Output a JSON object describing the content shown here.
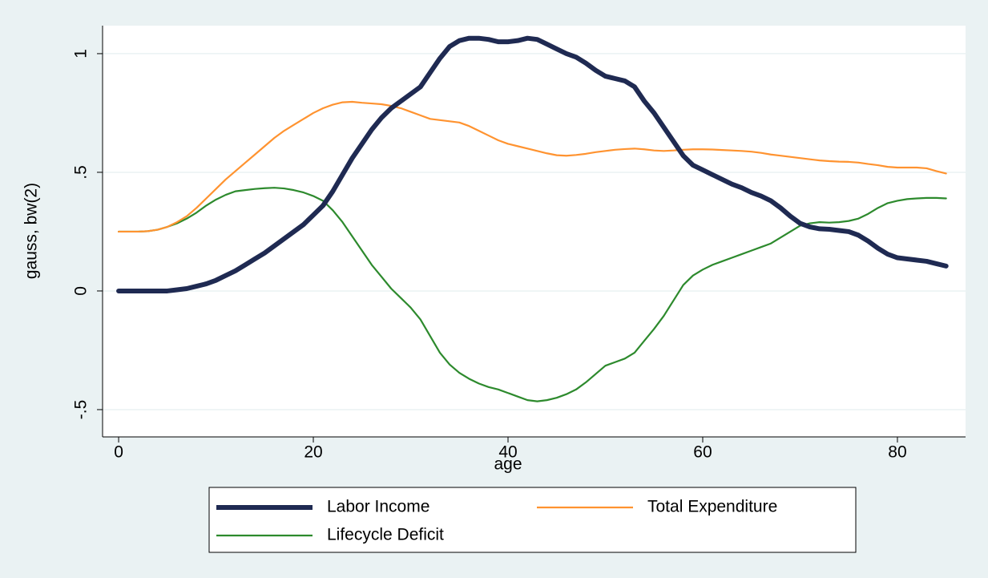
{
  "chart_data": {
    "type": "line",
    "x_label": "age",
    "y_label": "gauss, bw(2)",
    "x": [
      0,
      1,
      2,
      3,
      4,
      5,
      6,
      7,
      8,
      9,
      10,
      11,
      12,
      13,
      14,
      15,
      16,
      17,
      18,
      19,
      20,
      21,
      22,
      23,
      24,
      25,
      26,
      27,
      28,
      29,
      30,
      31,
      32,
      33,
      34,
      35,
      36,
      37,
      38,
      39,
      40,
      41,
      42,
      43,
      44,
      45,
      46,
      47,
      48,
      49,
      50,
      51,
      52,
      53,
      54,
      55,
      56,
      57,
      58,
      59,
      60,
      61,
      62,
      63,
      64,
      65,
      66,
      67,
      68,
      69,
      70,
      71,
      72,
      73,
      74,
      75,
      76,
      77,
      78,
      79,
      80,
      81,
      82,
      83,
      84,
      85
    ],
    "series": [
      {
        "name": "Labor Income",
        "color": "#1f2a52",
        "values": [
          0,
          0,
          0,
          0,
          0,
          0,
          0.005,
          0.01,
          0.02,
          0.03,
          0.045,
          0.065,
          0.085,
          0.11,
          0.135,
          0.16,
          0.19,
          0.22,
          0.25,
          0.28,
          0.32,
          0.36,
          0.42,
          0.49,
          0.56,
          0.62,
          0.68,
          0.73,
          0.77,
          0.8,
          0.83,
          0.86,
          0.92,
          0.98,
          1.03,
          1.055,
          1.065,
          1.065,
          1.06,
          1.05,
          1.05,
          1.055,
          1.065,
          1.06,
          1.04,
          1.02,
          1.0,
          0.985,
          0.96,
          0.93,
          0.905,
          0.895,
          0.885,
          0.86,
          0.8,
          0.75,
          0.69,
          0.63,
          0.57,
          0.53,
          0.51,
          0.49,
          0.47,
          0.45,
          0.435,
          0.415,
          0.4,
          0.38,
          0.35,
          0.315,
          0.285,
          0.27,
          0.262,
          0.26,
          0.255,
          0.25,
          0.235,
          0.21,
          0.18,
          0.155,
          0.14,
          0.135,
          0.13,
          0.125,
          0.115,
          0.105
        ]
      },
      {
        "name": "Total Expenditure",
        "color": "#ff9330",
        "values": [
          0.25,
          0.25,
          0.25,
          0.252,
          0.258,
          0.27,
          0.29,
          0.315,
          0.35,
          0.39,
          0.43,
          0.47,
          0.505,
          0.54,
          0.575,
          0.61,
          0.645,
          0.675,
          0.7,
          0.725,
          0.75,
          0.77,
          0.785,
          0.795,
          0.797,
          0.793,
          0.79,
          0.787,
          0.78,
          0.77,
          0.755,
          0.74,
          0.725,
          0.72,
          0.715,
          0.71,
          0.695,
          0.675,
          0.655,
          0.635,
          0.62,
          0.61,
          0.6,
          0.59,
          0.58,
          0.572,
          0.57,
          0.573,
          0.578,
          0.585,
          0.59,
          0.595,
          0.598,
          0.6,
          0.597,
          0.592,
          0.59,
          0.592,
          0.595,
          0.597,
          0.597,
          0.596,
          0.594,
          0.592,
          0.59,
          0.587,
          0.582,
          0.575,
          0.57,
          0.565,
          0.56,
          0.555,
          0.55,
          0.547,
          0.545,
          0.544,
          0.541,
          0.535,
          0.53,
          0.523,
          0.52,
          0.52,
          0.52,
          0.517,
          0.505,
          0.495
        ]
      },
      {
        "name": "Lifecycle Deficit",
        "color": "#2d8a2d",
        "values": [
          0.25,
          0.25,
          0.25,
          0.252,
          0.258,
          0.27,
          0.285,
          0.305,
          0.33,
          0.36,
          0.385,
          0.405,
          0.42,
          0.425,
          0.43,
          0.433,
          0.435,
          0.432,
          0.425,
          0.415,
          0.4,
          0.38,
          0.34,
          0.29,
          0.23,
          0.17,
          0.11,
          0.06,
          0.01,
          -0.03,
          -0.07,
          -0.12,
          -0.19,
          -0.26,
          -0.31,
          -0.345,
          -0.37,
          -0.39,
          -0.405,
          -0.415,
          -0.43,
          -0.445,
          -0.46,
          -0.465,
          -0.46,
          -0.45,
          -0.435,
          -0.415,
          -0.385,
          -0.35,
          -0.315,
          -0.3,
          -0.285,
          -0.26,
          -0.21,
          -0.16,
          -0.105,
          -0.04,
          0.025,
          0.065,
          0.09,
          0.11,
          0.125,
          0.14,
          0.155,
          0.17,
          0.185,
          0.2,
          0.225,
          0.25,
          0.275,
          0.285,
          0.29,
          0.288,
          0.29,
          0.295,
          0.305,
          0.325,
          0.35,
          0.37,
          0.38,
          0.387,
          0.39,
          0.392,
          0.392,
          0.39
        ]
      }
    ],
    "xlim": [
      -1.65,
      87
    ],
    "ylim": [
      -0.615,
      1.118
    ],
    "xticks": [
      0,
      20,
      40,
      60,
      80
    ],
    "yticks": [
      {
        "value": -0.5,
        "label": "-.5"
      },
      0,
      {
        "value": 0.5,
        "label": ".5"
      },
      1
    ],
    "grid": true,
    "legend": "bottom"
  }
}
